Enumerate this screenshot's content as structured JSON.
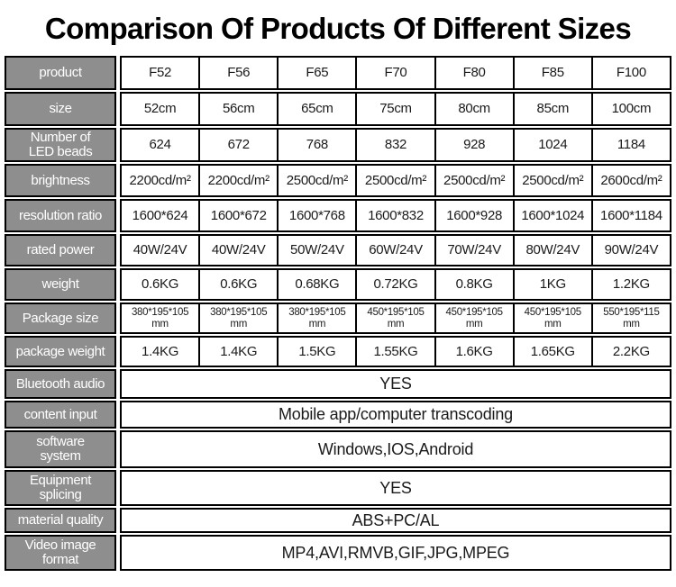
{
  "title": "Comparison Of Products Of Different Sizes",
  "colors": {
    "header_bg": "#8e8e8e",
    "header_text": "#ffffff",
    "border": "#000000",
    "cell_text": "#1a1a1a"
  },
  "table": {
    "products": [
      "F52",
      "F56",
      "F65",
      "F70",
      "F80",
      "F85",
      "F100"
    ],
    "rows": [
      {
        "label": "product",
        "values": [
          "F52",
          "F56",
          "F65",
          "F70",
          "F80",
          "F85",
          "F100"
        ]
      },
      {
        "label": "size",
        "values": [
          "52cm",
          "56cm",
          "65cm",
          "75cm",
          "80cm",
          "85cm",
          "100cm"
        ]
      },
      {
        "label": [
          "Number of",
          "LED beads"
        ],
        "values": [
          "624",
          "672",
          "768",
          "832",
          "928",
          "1024",
          "1184"
        ]
      },
      {
        "label": "brightness",
        "values": [
          "2200cd/m²",
          "2200cd/m²",
          "2500cd/m²",
          "2500cd/m²",
          "2500cd/m²",
          "2500cd/m²",
          "2600cd/m²"
        ]
      },
      {
        "label": "resolution ratio",
        "values": [
          "1600*624",
          "1600*672",
          "1600*768",
          "1600*832",
          "1600*928",
          "1600*1024",
          "1600*1184"
        ]
      },
      {
        "label": "rated power",
        "values": [
          "40W/24V",
          "40W/24V",
          "50W/24V",
          "60W/24V",
          "70W/24V",
          "80W/24V",
          "90W/24V"
        ]
      },
      {
        "label": "weight",
        "values": [
          "0.6KG",
          "0.6KG",
          "0.68KG",
          "0.72KG",
          "0.8KG",
          "1KG",
          "1.2KG"
        ]
      },
      {
        "label": "Package size",
        "small": true,
        "values": [
          [
            "380*195*105",
            "mm"
          ],
          [
            "380*195*105",
            "mm"
          ],
          [
            "380*195*105",
            "mm"
          ],
          [
            "450*195*105",
            "mm"
          ],
          [
            "450*195*105",
            "mm"
          ],
          [
            "450*195*105",
            "mm"
          ],
          [
            "550*195*115",
            "mm"
          ]
        ]
      },
      {
        "label": "package weight",
        "values": [
          "1.4KG",
          "1.4KG",
          "1.5KG",
          "1.55KG",
          "1.6KG",
          "1.65KG",
          "2.2KG"
        ]
      },
      {
        "label": "Bluetooth audio",
        "merged": "YES"
      },
      {
        "label": "content input",
        "merged": "Mobile app/computer transcoding"
      },
      {
        "label": [
          "software",
          "system"
        ],
        "merged": "Windows,IOS,Android"
      },
      {
        "label": [
          "Equipment",
          "splicing"
        ],
        "merged": "YES"
      },
      {
        "label": "material quality",
        "merged": "ABS+PC/AL"
      },
      {
        "label": [
          "Video image",
          "format"
        ],
        "merged": "MP4,AVI,RMVB,GIF,JPG,MPEG"
      }
    ]
  }
}
